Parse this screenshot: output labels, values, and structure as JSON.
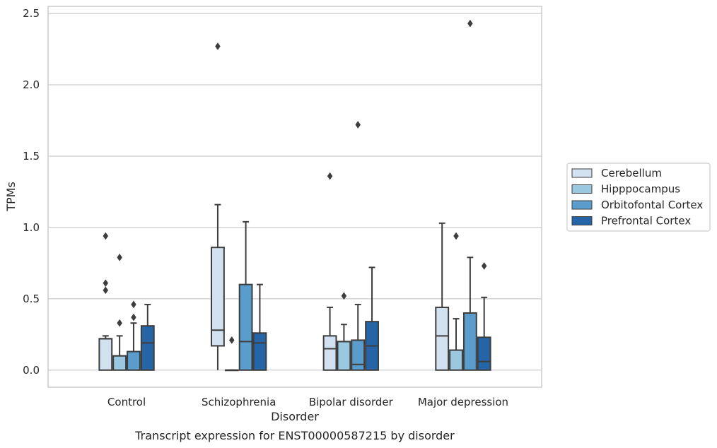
{
  "chart_data": {
    "type": "box",
    "title": "Transcript expression for ENST00000587215 by disorder",
    "xlabel": "Disorder",
    "ylabel": "TPMs",
    "ylim": [
      -0.12,
      2.55
    ],
    "yticks": [
      0.0,
      0.5,
      1.0,
      1.5,
      2.0,
      2.5
    ],
    "ytick_labels": [
      "0.0",
      "0.5",
      "1.0",
      "1.5",
      "2.0",
      "2.5"
    ],
    "grid": true,
    "legend_position": "right",
    "categories": [
      "Control",
      "Schizophrenia",
      "Bipolar disorder",
      "Major depression"
    ],
    "series": [
      {
        "name": "Cerebellum",
        "color": "#d1e1f0",
        "boxes": [
          {
            "whisker_low": 0.0,
            "q1": 0.0,
            "median": 0.22,
            "q3": 0.22,
            "whisker_high": 0.24,
            "outliers": [
              0.94,
              0.61,
              0.56
            ]
          },
          {
            "whisker_low": 0.0,
            "q1": 0.17,
            "median": 0.28,
            "q3": 0.86,
            "whisker_high": 1.16,
            "outliers": [
              2.27
            ]
          },
          {
            "whisker_low": 0.0,
            "q1": 0.0,
            "median": 0.15,
            "q3": 0.24,
            "whisker_high": 0.44,
            "outliers": [
              1.36
            ]
          },
          {
            "whisker_low": 0.0,
            "q1": 0.0,
            "median": 0.24,
            "q3": 0.44,
            "whisker_high": 1.03,
            "outliers": []
          }
        ]
      },
      {
        "name": "Hipppocampus",
        "color": "#9ac8e0",
        "boxes": [
          {
            "whisker_low": 0.0,
            "q1": 0.0,
            "median": 0.1,
            "q3": 0.1,
            "whisker_high": 0.24,
            "outliers": [
              0.79,
              0.33
            ]
          },
          {
            "whisker_low": 0.0,
            "q1": 0.0,
            "median": 0.0,
            "q3": 0.0,
            "whisker_high": 0.0,
            "outliers": [
              0.21
            ]
          },
          {
            "whisker_low": 0.0,
            "q1": 0.0,
            "median": 0.2,
            "q3": 0.2,
            "whisker_high": 0.32,
            "outliers": [
              0.52
            ]
          },
          {
            "whisker_low": 0.0,
            "q1": 0.0,
            "median": 0.14,
            "q3": 0.14,
            "whisker_high": 0.36,
            "outliers": [
              0.94
            ]
          }
        ]
      },
      {
        "name": "Orbitofontal Cortex",
        "color": "#5a9ccc",
        "boxes": [
          {
            "whisker_low": 0.0,
            "q1": 0.0,
            "median": 0.13,
            "q3": 0.13,
            "whisker_high": 0.33,
            "outliers": [
              0.46,
              0.37
            ]
          },
          {
            "whisker_low": 0.0,
            "q1": 0.0,
            "median": 0.2,
            "q3": 0.6,
            "whisker_high": 1.04,
            "outliers": []
          },
          {
            "whisker_low": 0.0,
            "q1": 0.0,
            "median": 0.04,
            "q3": 0.21,
            "whisker_high": 0.46,
            "outliers": [
              1.72
            ]
          },
          {
            "whisker_low": 0.0,
            "q1": 0.0,
            "median": 0.4,
            "q3": 0.4,
            "whisker_high": 0.79,
            "outliers": [
              2.43
            ]
          }
        ]
      },
      {
        "name": "Prefrontal Cortex",
        "color": "#2565a7",
        "boxes": [
          {
            "whisker_low": 0.0,
            "q1": 0.0,
            "median": 0.19,
            "q3": 0.31,
            "whisker_high": 0.46,
            "outliers": []
          },
          {
            "whisker_low": 0.0,
            "q1": 0.0,
            "median": 0.19,
            "q3": 0.26,
            "whisker_high": 0.6,
            "outliers": []
          },
          {
            "whisker_low": 0.0,
            "q1": 0.0,
            "median": 0.17,
            "q3": 0.34,
            "whisker_high": 0.72,
            "outliers": []
          },
          {
            "whisker_low": 0.0,
            "q1": 0.0,
            "median": 0.06,
            "q3": 0.23,
            "whisker_high": 0.51,
            "outliers": [
              0.73
            ]
          }
        ]
      }
    ]
  }
}
